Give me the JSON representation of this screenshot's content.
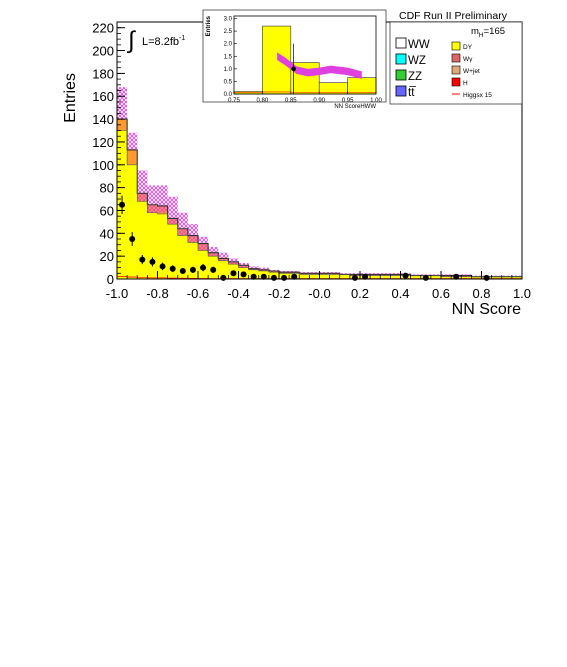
{
  "chart_data": [
    {
      "type": "bar",
      "title": "",
      "xlabel": "NN Score",
      "ylabel": "Entries",
      "xlim": [
        -1.0,
        1.0
      ],
      "ylim": [
        0,
        225
      ],
      "xticks": [
        "-1.0",
        "-0.8",
        "-0.6",
        "-0.4",
        "-0.2",
        "-0.0",
        "0.2",
        "0.4",
        "0.6",
        "0.8",
        "1.0"
      ],
      "yticks": [
        "0",
        "20",
        "40",
        "60",
        "80",
        "100",
        "120",
        "140",
        "160",
        "180",
        "200",
        "220"
      ],
      "bin_edges": [
        -1.0,
        -0.95,
        -0.9,
        -0.85,
        -0.8,
        -0.75,
        -0.7,
        -0.65,
        -0.6,
        -0.55,
        -0.5,
        -0.45,
        -0.4,
        -0.35,
        -0.3,
        -0.25,
        -0.2,
        -0.15,
        -0.1,
        -0.05,
        0.0,
        0.05,
        0.1,
        0.15,
        0.2,
        0.25,
        0.3,
        0.35,
        0.4,
        0.45,
        0.5,
        0.55,
        0.6,
        0.65,
        0.7,
        0.75,
        0.8,
        0.85,
        0.9,
        0.95,
        1.0
      ],
      "series": [
        {
          "name": "DY",
          "color": "#ffff00",
          "values": [
            130,
            100,
            68,
            58,
            57,
            48,
            38,
            32,
            25,
            20,
            16,
            13,
            10,
            8,
            7,
            6,
            5,
            5,
            4,
            4,
            4,
            4,
            4,
            3,
            3,
            3,
            3,
            3,
            3,
            3,
            3,
            3,
            2,
            2,
            2,
            2,
            2,
            2,
            2,
            2
          ]
        },
        {
          "name": "stacked background total",
          "values": [
            140,
            113,
            75,
            65,
            64,
            53,
            44,
            38,
            31,
            23,
            18,
            15,
            12,
            9,
            8,
            7,
            6,
            6,
            5,
            5,
            5,
            5,
            4,
            4,
            4,
            4,
            4,
            4,
            4,
            3,
            3,
            3,
            3,
            3,
            3,
            2,
            2,
            2,
            2,
            2
          ]
        },
        {
          "name": "uncertainty band upper",
          "values": [
            168,
            128,
            95,
            82,
            82,
            72,
            58,
            48,
            37,
            28,
            23,
            18,
            14,
            11,
            10,
            8,
            7,
            7,
            6,
            6,
            6,
            6,
            5,
            5,
            5,
            5,
            5,
            5,
            5,
            4,
            4,
            4,
            4,
            4,
            4,
            3,
            3,
            3,
            3,
            3
          ]
        },
        {
          "name": "uncertainty band lower",
          "values": [
            140,
            113,
            62,
            55,
            58,
            40,
            32,
            28,
            24,
            19,
            15,
            12,
            10,
            7,
            6,
            5,
            4,
            4,
            3,
            3,
            3,
            3,
            2,
            2,
            2,
            2,
            2,
            2,
            2,
            2,
            2,
            2,
            1,
            1,
            1,
            1,
            1,
            1,
            1,
            1
          ]
        }
      ],
      "points": [
        {
          "x": -0.975,
          "y": 65,
          "yerr": 8
        },
        {
          "x": -0.925,
          "y": 35,
          "yerr": 6
        },
        {
          "x": -0.875,
          "y": 17,
          "yerr": 4
        },
        {
          "x": -0.825,
          "y": 15,
          "yerr": 4
        },
        {
          "x": -0.775,
          "y": 11,
          "yerr": 3.3
        },
        {
          "x": -0.725,
          "y": 9,
          "yerr": 3
        },
        {
          "x": -0.675,
          "y": 7,
          "yerr": 2.6
        },
        {
          "x": -0.625,
          "y": 8,
          "yerr": 2.8
        },
        {
          "x": -0.575,
          "y": 10,
          "yerr": 3.2
        },
        {
          "x": -0.525,
          "y": 8,
          "yerr": 2.8
        },
        {
          "x": -0.475,
          "y": 1,
          "yerr": 1
        },
        {
          "x": -0.425,
          "y": 5,
          "yerr": 2.2
        },
        {
          "x": -0.375,
          "y": 4,
          "yerr": 2
        },
        {
          "x": -0.325,
          "y": 2,
          "yerr": 1.4
        },
        {
          "x": -0.275,
          "y": 2,
          "yerr": 1.4
        },
        {
          "x": -0.225,
          "y": 1,
          "yerr": 1
        },
        {
          "x": -0.175,
          "y": 1,
          "yerr": 1
        },
        {
          "x": -0.125,
          "y": 2,
          "yerr": 1.4
        },
        {
          "x": 0.175,
          "y": 1,
          "yerr": 1
        },
        {
          "x": 0.225,
          "y": 2,
          "yerr": 1.4
        },
        {
          "x": 0.425,
          "y": 3,
          "yerr": 1.7
        },
        {
          "x": 0.525,
          "y": 1,
          "yerr": 1
        },
        {
          "x": 0.675,
          "y": 2,
          "yerr": 1.4
        },
        {
          "x": 0.825,
          "y": 1,
          "yerr": 1
        }
      ],
      "annotations": [
        "CDF Run II Preliminary",
        "L=8.2fb",
        "-1",
        "m",
        "H",
        "=165"
      ],
      "legend": {
        "placement": "top-right",
        "entries": [
          {
            "label": "WW",
            "color": "#ffffff"
          },
          {
            "label": "WZ",
            "color": "#00ffff"
          },
          {
            "label": "ZZ",
            "color": "#33cc33"
          },
          {
            "label": "tt̅",
            "color": "#6666ff"
          },
          {
            "label": "DY",
            "color": "#ffff00"
          },
          {
            "label": "Wγ",
            "color": "#dd6666"
          },
          {
            "label": "W+jet",
            "color": "#ddaa77"
          },
          {
            "label": "H",
            "color": "#ff0000"
          },
          {
            "label": "Higgsx 15",
            "color": "#ff0000"
          }
        ]
      },
      "grid": false
    },
    {
      "type": "bar",
      "title": "",
      "xlabel": "NN ScoreHWW",
      "ylabel": "Entries",
      "xlim": [
        0.75,
        1.0
      ],
      "ylim": [
        0,
        3.1
      ],
      "xticks": [
        "0.75",
        "0.80",
        "0.85",
        "0.90",
        "0.95",
        "1.00"
      ],
      "yticks": [
        "0.0",
        "0.5",
        "1.0",
        "1.5",
        "2.0",
        "2.5",
        "3.0"
      ],
      "bin_edges": [
        0.75,
        0.8,
        0.85,
        0.9,
        0.95,
        1.0
      ],
      "series": [
        {
          "name": "DY",
          "color": "#ffff00",
          "values": [
            0.1,
            2.7,
            1.25,
            0.45,
            0.65
          ]
        },
        {
          "name": "signal band",
          "color": "#ff44ff",
          "x": [
            0.826,
            0.84,
            0.86,
            0.88,
            0.9,
            0.92,
            0.95,
            0.975
          ],
          "values": [
            1.5,
            1.3,
            0.95,
            0.85,
            0.9,
            0.98,
            0.9,
            0.75
          ]
        }
      ],
      "points": [
        {
          "x": 0.855,
          "y": 1.0,
          "yerr": 1.0
        }
      ],
      "grid": false
    }
  ],
  "colors": {
    "dy": "#ffff00",
    "stack": "#ff9a30",
    "band": "#e040e0",
    "higgs": "#ff0000"
  }
}
